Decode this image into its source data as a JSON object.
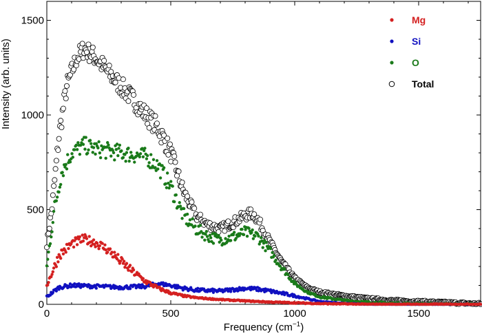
{
  "chart_data": {
    "type": "scatter",
    "title": "",
    "xlabel": "Frequency (cm",
    "xlabel_sup": "−1",
    "xlabel_close": ")",
    "ylabel": "Intensity (arb. units)",
    "xlim": [
      0,
      1750
    ],
    "ylim": [
      0,
      1600
    ],
    "xticks": [
      0,
      500,
      1000,
      1500
    ],
    "yticks": [
      0,
      500,
      1000,
      1500
    ],
    "xtick_labels": [
      "0",
      "500",
      "1000",
      "1500"
    ],
    "ytick_labels": [
      "0",
      "500",
      "1000",
      "1500"
    ],
    "grid": false,
    "legend_position": "top-right",
    "series": [
      {
        "name": "Mg",
        "color": "#d42020",
        "marker": "filled-circle",
        "profile": [
          [
            0,
            100
          ],
          [
            50,
            260
          ],
          [
            100,
            320
          ],
          [
            150,
            345
          ],
          [
            200,
            325
          ],
          [
            250,
            285
          ],
          [
            300,
            225
          ],
          [
            350,
            170
          ],
          [
            400,
            120
          ],
          [
            450,
            85
          ],
          [
            500,
            60
          ],
          [
            550,
            45
          ],
          [
            600,
            35
          ],
          [
            700,
            25
          ],
          [
            800,
            18
          ],
          [
            900,
            12
          ],
          [
            1000,
            8
          ],
          [
            1100,
            4
          ],
          [
            1200,
            2
          ],
          [
            1300,
            0
          ]
        ],
        "scatter": 25
      },
      {
        "name": "Si",
        "color": "#1010c0",
        "marker": "filled-circle",
        "profile": [
          [
            0,
            40
          ],
          [
            50,
            90
          ],
          [
            100,
            100
          ],
          [
            200,
            95
          ],
          [
            300,
            90
          ],
          [
            400,
            95
          ],
          [
            450,
            110
          ],
          [
            500,
            100
          ],
          [
            550,
            85
          ],
          [
            600,
            75
          ],
          [
            700,
            70
          ],
          [
            800,
            85
          ],
          [
            850,
            80
          ],
          [
            900,
            70
          ],
          [
            1000,
            45
          ],
          [
            1100,
            15
          ],
          [
            1200,
            5
          ],
          [
            1300,
            0
          ]
        ],
        "scatter": 10
      },
      {
        "name": "O",
        "color": "#1a7a1a",
        "marker": "filled-circle",
        "profile": [
          [
            0,
            200
          ],
          [
            30,
            500
          ],
          [
            60,
            700
          ],
          [
            100,
            800
          ],
          [
            150,
            840
          ],
          [
            200,
            820
          ],
          [
            250,
            810
          ],
          [
            300,
            800
          ],
          [
            350,
            790
          ],
          [
            400,
            780
          ],
          [
            450,
            730
          ],
          [
            500,
            620
          ],
          [
            550,
            470
          ],
          [
            600,
            400
          ],
          [
            650,
            360
          ],
          [
            700,
            340
          ],
          [
            750,
            355
          ],
          [
            800,
            380
          ],
          [
            850,
            360
          ],
          [
            900,
            280
          ],
          [
            950,
            190
          ],
          [
            1000,
            110
          ],
          [
            1050,
            65
          ],
          [
            1100,
            40
          ],
          [
            1200,
            20
          ],
          [
            1300,
            10
          ],
          [
            1400,
            5
          ],
          [
            1500,
            2
          ],
          [
            1600,
            0
          ]
        ],
        "scatter": 45
      },
      {
        "name": "Total",
        "color": "#000000",
        "marker": "open-circle",
        "profile": [
          [
            0,
            320
          ],
          [
            20,
            500
          ],
          [
            50,
            900
          ],
          [
            80,
            1150
          ],
          [
            120,
            1300
          ],
          [
            150,
            1350
          ],
          [
            200,
            1300
          ],
          [
            250,
            1220
          ],
          [
            300,
            1150
          ],
          [
            350,
            1080
          ],
          [
            400,
            1000
          ],
          [
            450,
            930
          ],
          [
            500,
            800
          ],
          [
            550,
            600
          ],
          [
            600,
            470
          ],
          [
            650,
            420
          ],
          [
            700,
            400
          ],
          [
            750,
            430
          ],
          [
            800,
            470
          ],
          [
            830,
            480
          ],
          [
            850,
            450
          ],
          [
            900,
            330
          ],
          [
            950,
            220
          ],
          [
            1000,
            140
          ],
          [
            1050,
            90
          ],
          [
            1100,
            65
          ],
          [
            1200,
            45
          ],
          [
            1300,
            30
          ],
          [
            1400,
            20
          ],
          [
            1500,
            15
          ],
          [
            1600,
            10
          ],
          [
            1700,
            5
          ],
          [
            1750,
            3
          ]
        ],
        "scatter": 50
      }
    ]
  }
}
